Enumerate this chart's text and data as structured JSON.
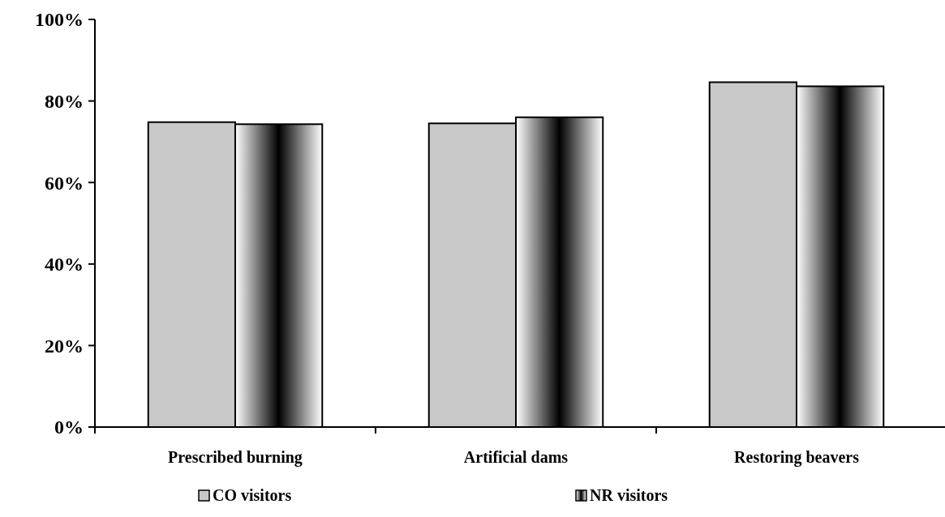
{
  "chart_data": {
    "type": "bar",
    "categories": [
      "Prescribed burning",
      "Artificial dams",
      "Restoring beavers"
    ],
    "series": [
      {
        "name": "CO visitors",
        "color": "#c8c8c8",
        "values": [
          74.8,
          74.5,
          84.6
        ]
      },
      {
        "name": "NR visitors",
        "color": "#000000",
        "values": [
          74.3,
          76,
          83.6
        ]
      }
    ],
    "ylim": [
      0,
      100
    ],
    "yticks": [
      {
        "value": 0,
        "label": "0%"
      },
      {
        "value": 20,
        "label": "20%"
      },
      {
        "value": 40,
        "label": "40%"
      },
      {
        "value": 60,
        "label": "60%"
      },
      {
        "value": 80,
        "label": "80%"
      },
      {
        "value": 100,
        "label": "100%"
      }
    ],
    "legend": "bottom"
  }
}
